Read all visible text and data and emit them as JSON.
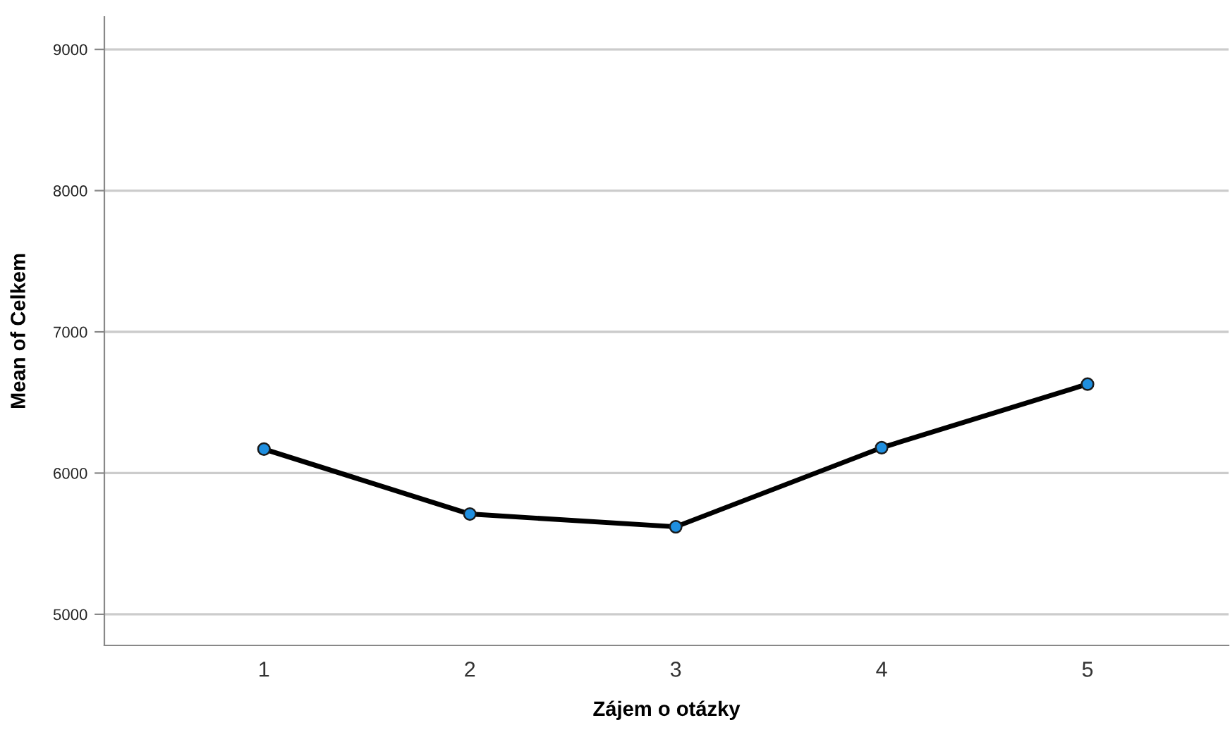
{
  "chart_data": {
    "type": "line",
    "xlabel": "Zájem o otázky",
    "ylabel": "Mean of Celkem",
    "categories": [
      "1",
      "2",
      "3",
      "4",
      "5"
    ],
    "series": [
      {
        "color": "#000000",
        "values": [
          6170,
          5710,
          5620,
          6180,
          6630
        ]
      }
    ],
    "ylim": [
      4780,
      9230
    ],
    "yticks": [
      5000,
      6000,
      7000,
      8000,
      9000
    ],
    "grid": "y",
    "marker": "circle",
    "line_style": "solid",
    "legend": false
  }
}
